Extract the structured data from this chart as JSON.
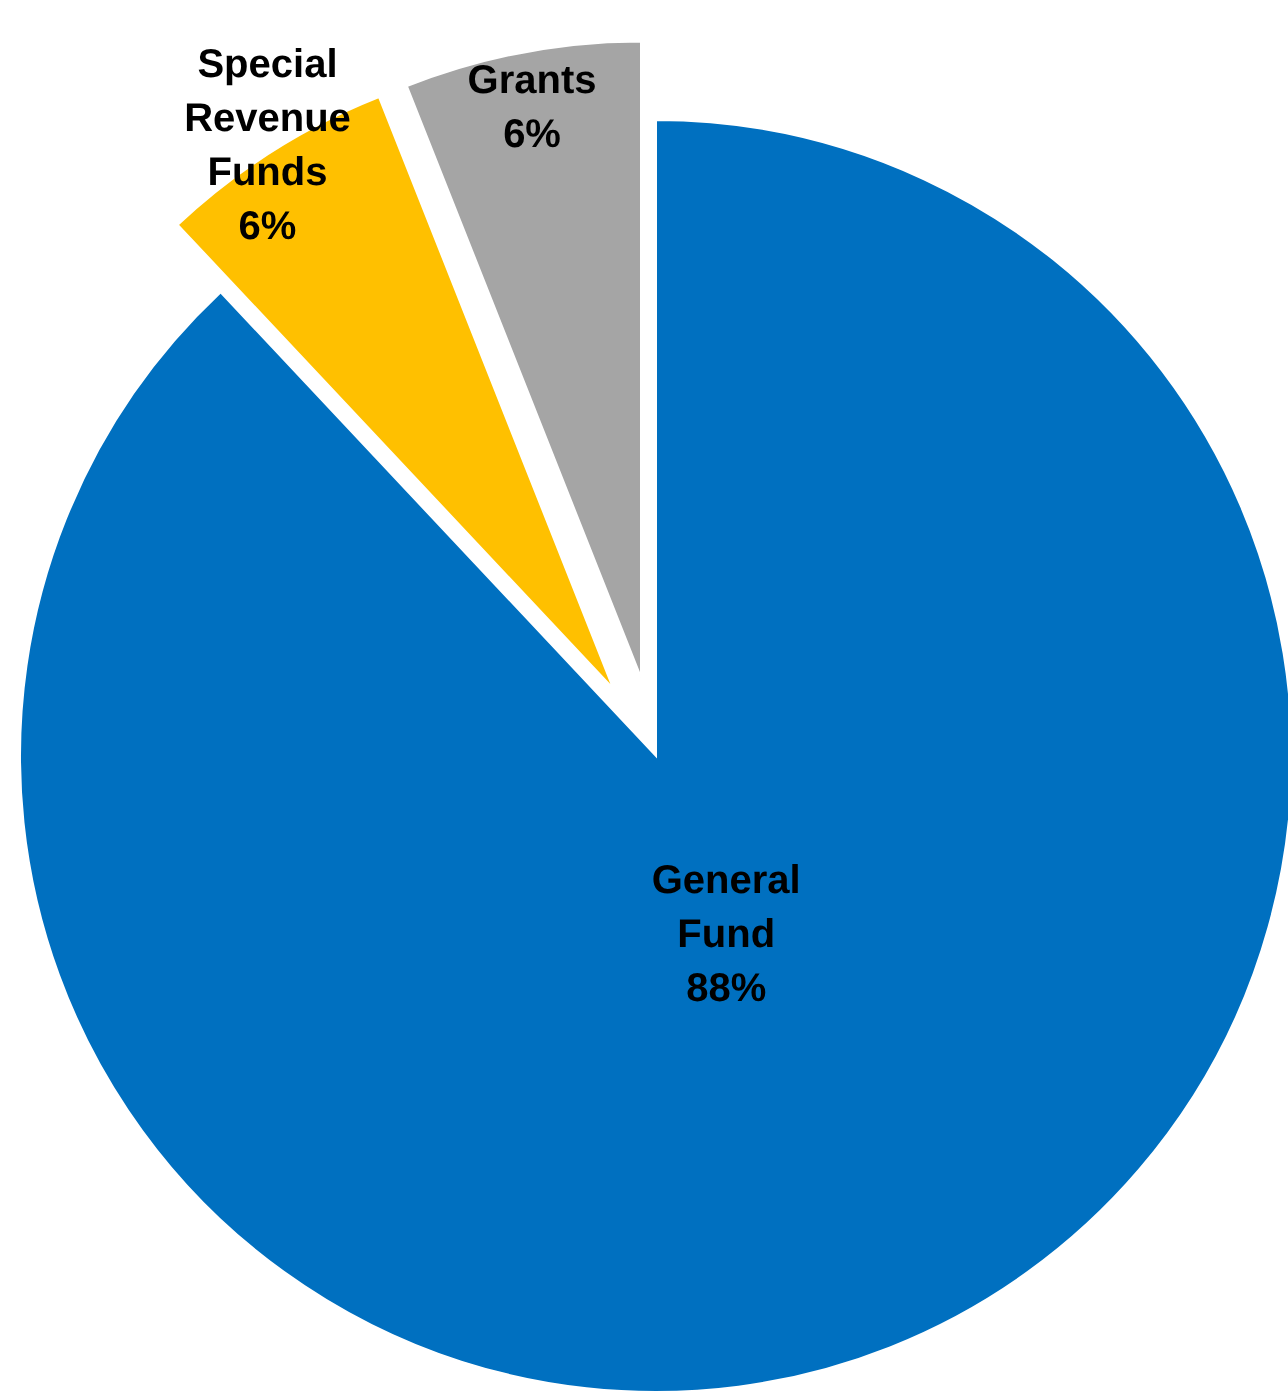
{
  "chart_data": {
    "type": "pie",
    "categories": [
      "General Fund",
      "Special Revenue Funds",
      "Grants"
    ],
    "values": [
      88,
      6,
      6
    ],
    "colors": [
      "#0070c0",
      "#ffc000",
      "#a5a5a5"
    ],
    "value_labels": [
      "88%",
      "6%",
      "6%"
    ]
  }
}
